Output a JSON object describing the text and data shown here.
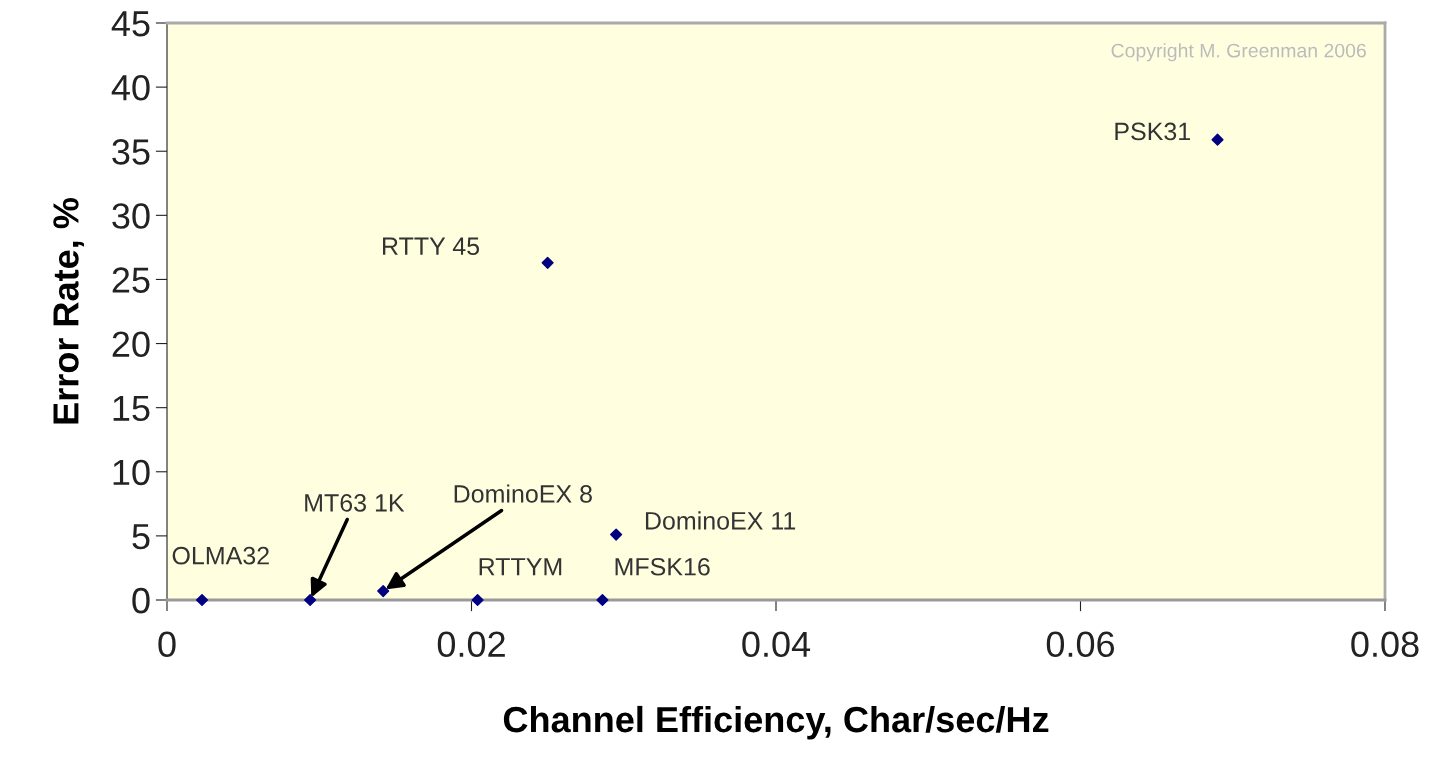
{
  "chart_data": {
    "type": "scatter",
    "xlabel": "Channel Efficiency, Char/sec/Hz",
    "ylabel": "Error Rate, %",
    "x": [
      0.0023,
      0.0094,
      0.0142,
      0.0204,
      0.0286,
      0.0295,
      0.025,
      0.069
    ],
    "series": [
      {
        "color": "#000080",
        "values": [
          0,
          0,
          0.7,
          0,
          0,
          5.1,
          26.3,
          35.9
        ]
      }
    ],
    "xlim": [
      0,
      0.08
    ],
    "xticks": [
      0,
      0.02,
      0.04,
      0.06,
      0.08
    ],
    "ylim": [
      0,
      45
    ],
    "yticks": [
      0,
      5,
      10,
      15,
      20,
      25,
      30,
      35,
      40,
      45
    ],
    "grid": false,
    "marker": "diamond",
    "annotations": [
      {
        "text": "OLMA32",
        "x": 0.0023,
        "y": 0
      },
      {
        "text": "MT63 1K",
        "x": 0.0094,
        "y": 0
      },
      {
        "text": "DominoEX 8",
        "x": 0.0142,
        "y": 0.7
      },
      {
        "text": "RTTYM",
        "x": 0.0204,
        "y": 0
      },
      {
        "text": "MFSK16",
        "x": 0.0286,
        "y": 0
      },
      {
        "text": "DominoEX 11",
        "x": 0.0295,
        "y": 5.1
      },
      {
        "text": "RTTY 45",
        "x": 0.025,
        "y": 26.3
      },
      {
        "text": "PSK31",
        "x": 0.069,
        "y": 35.9
      },
      "Copyright M. Greenman 2006"
    ]
  }
}
